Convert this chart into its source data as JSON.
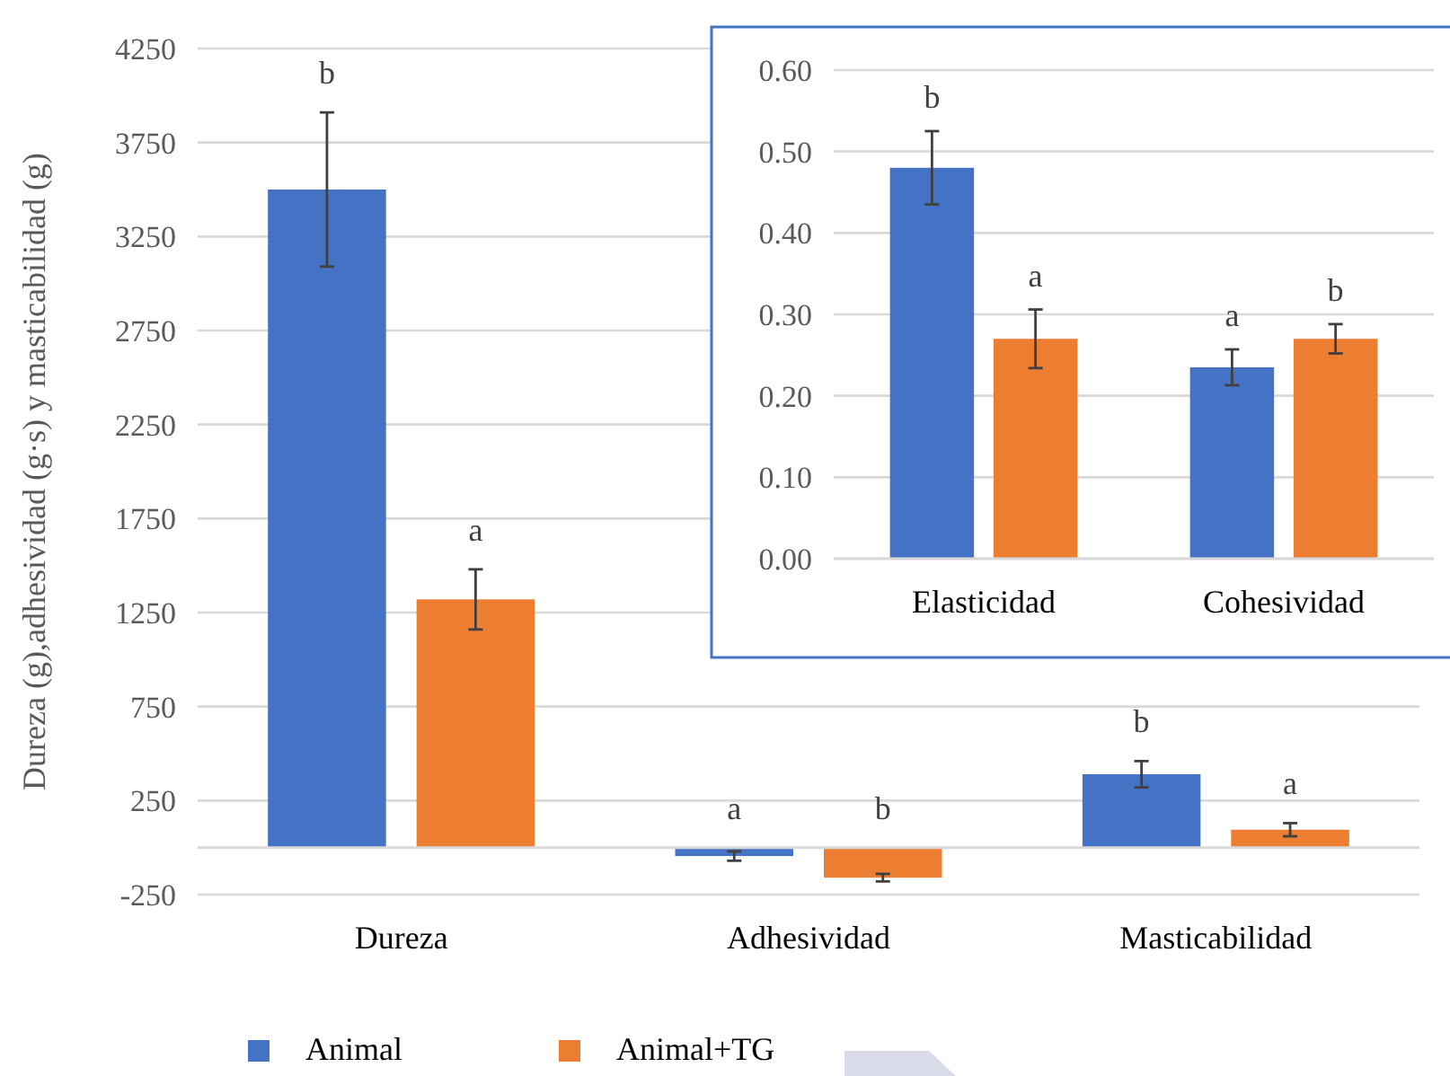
{
  "chart_data": [
    {
      "type": "bar",
      "ylabel": "Dureza (g),adhesividad (g·s) y masticabilidad (g)",
      "categories": [
        "Dureza",
        "Adhesividad",
        "Masticabilidad"
      ],
      "series": [
        {
          "name": "Animal",
          "color": "#4472c4",
          "values": [
            3500,
            -45,
            390
          ],
          "errors": [
            410,
            25,
            70
          ],
          "value_labels": [
            "b",
            "a",
            "b"
          ]
        },
        {
          "name": "Animal+TG",
          "color": "#ed7d31",
          "values": [
            1320,
            -160,
            95
          ],
          "errors": [
            160,
            20,
            35
          ],
          "value_labels": [
            "a",
            "b",
            "a"
          ]
        }
      ],
      "ylim": [
        -250,
        4250
      ],
      "yticks": [
        -250,
        250,
        750,
        1250,
        1750,
        2250,
        2750,
        3250,
        3750,
        4250
      ],
      "grid": true,
      "legend": "bottom"
    },
    {
      "type": "bar",
      "categories": [
        "Elasticidad",
        "Cohesividad"
      ],
      "series": [
        {
          "color": "#4472c4",
          "values": [
            0.48,
            0.235
          ],
          "errors": [
            0.045,
            0.022
          ],
          "value_labels": [
            "b",
            "a"
          ]
        },
        {
          "color": "#ed7d31",
          "values": [
            0.27,
            0.27
          ],
          "errors": [
            0.036,
            0.018
          ],
          "value_labels": [
            "a",
            "b"
          ]
        }
      ],
      "ylim": [
        0,
        0.6
      ],
      "yticks": [
        {
          "value": 0,
          "label": "0.00"
        },
        {
          "value": 0.1,
          "label": "0.10"
        },
        {
          "value": 0.2,
          "label": "0.20"
        },
        {
          "value": 0.3,
          "label": "0.30"
        },
        {
          "value": 0.4,
          "label": "0.40"
        },
        {
          "value": 0.5,
          "label": "0.50"
        },
        {
          "value": 0.6,
          "label": "0.60"
        }
      ],
      "grid": true
    }
  ]
}
